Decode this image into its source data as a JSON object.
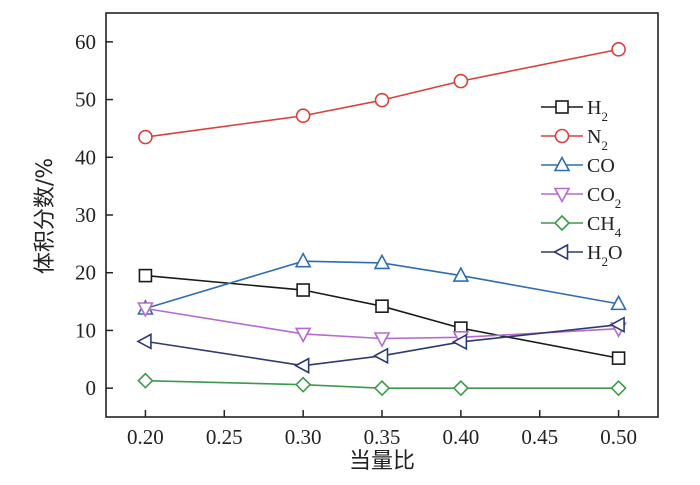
{
  "chart_data": {
    "type": "line",
    "xlabel": "当量比",
    "ylabel": "体积分数/%",
    "xlim": [
      0.175,
      0.525
    ],
    "ylim": [
      -5,
      65
    ],
    "xticks": [
      "0.20",
      "0.25",
      "0.30",
      "0.35",
      "0.40",
      "0.45",
      "0.50"
    ],
    "yticks": [
      "0",
      "10",
      "20",
      "30",
      "40",
      "50",
      "60"
    ],
    "grid": false,
    "legend_position": "right",
    "x": [
      0.2,
      0.3,
      0.35,
      0.4,
      0.5
    ],
    "series": [
      {
        "name": "H2",
        "label_main": "H",
        "label_sub": "2",
        "label_tail": "",
        "color": "#1a1a1a",
        "marker": "square",
        "values": [
          19.5,
          17.0,
          14.2,
          10.4,
          5.2
        ]
      },
      {
        "name": "N2",
        "label_main": "N",
        "label_sub": "2",
        "label_tail": "",
        "color": "#d9403a",
        "marker": "circle",
        "values": [
          43.5,
          47.2,
          49.9,
          53.2,
          58.7
        ]
      },
      {
        "name": "CO",
        "label_main": "CO",
        "label_sub": "",
        "label_tail": "",
        "color": "#2f6db0",
        "marker": "triangle-up",
        "values": [
          13.8,
          22.0,
          21.7,
          19.5,
          14.6
        ]
      },
      {
        "name": "CO2",
        "label_main": "CO",
        "label_sub": "2",
        "label_tail": "",
        "color": "#b56ad1",
        "marker": "triangle-down",
        "values": [
          13.8,
          9.4,
          8.6,
          8.8,
          10.3
        ]
      },
      {
        "name": "CH4",
        "label_main": "CH",
        "label_sub": "4",
        "label_tail": "",
        "color": "#3c9a4a",
        "marker": "diamond",
        "values": [
          1.3,
          0.6,
          0.0,
          0.0,
          0.0
        ]
      },
      {
        "name": "H2O",
        "label_main": "H",
        "label_sub": "2",
        "label_tail": "O",
        "color": "#2e3a6e",
        "marker": "triangle-left",
        "values": [
          8.1,
          3.9,
          5.6,
          8.0,
          11.0
        ]
      }
    ]
  }
}
